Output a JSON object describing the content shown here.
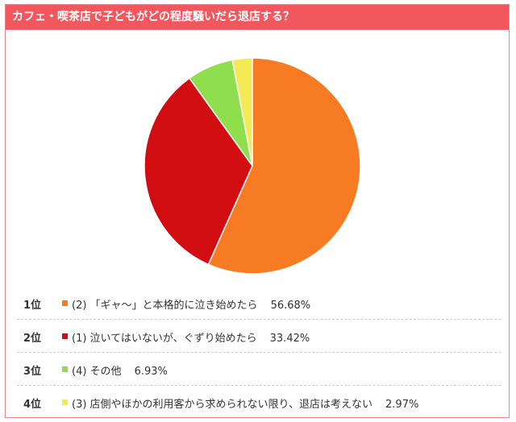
{
  "header": {
    "title": "カフェ・喫茶店で子どもがどの程度騒いだら退店する？"
  },
  "chart_data": {
    "type": "pie",
    "categories": [
      "(2) 「ギャ〜」と本格的に泣き始めたら",
      "(1) 泣いてはいないが、ぐずり始めたら",
      "(4) その他",
      "(3) 店側やほかの利用客から求められない限り、退店は考えない"
    ],
    "values": [
      56.68,
      33.42,
      6.93,
      2.97
    ],
    "colors": [
      "#f77b23",
      "#d10d12",
      "#8ede4d",
      "#f3ea55"
    ]
  },
  "ranking": [
    {
      "rank": "1位",
      "label": "(2) 「ギャ〜」と本格的に泣き始めたら",
      "pct": "56.68%",
      "color": "#f77b23"
    },
    {
      "rank": "2位",
      "label": "(1) 泣いてはいないが、ぐずり始めたら",
      "pct": "33.42%",
      "color": "#d10d12"
    },
    {
      "rank": "3位",
      "label": "(4) その他",
      "pct": "6.93%",
      "color": "#8ede4d"
    },
    {
      "rank": "4位",
      "label": "(3) 店側やほかの利用客から求められない限り、退店は考えない",
      "pct": "2.97%",
      "color": "#f3ea55"
    }
  ]
}
